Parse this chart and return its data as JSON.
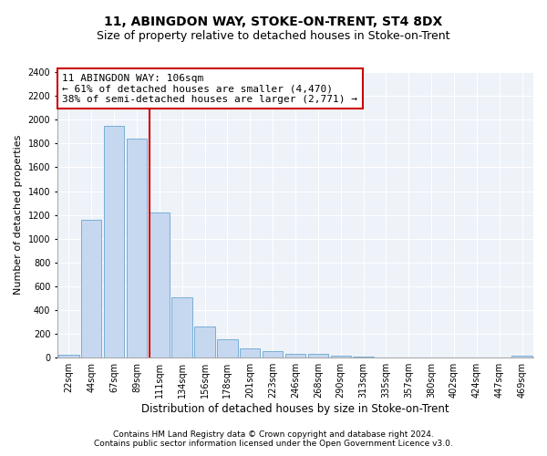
{
  "title1": "11, ABINGDON WAY, STOKE-ON-TRENT, ST4 8DX",
  "title2": "Size of property relative to detached houses in Stoke-on-Trent",
  "xlabel": "Distribution of detached houses by size in Stoke-on-Trent",
  "ylabel": "Number of detached properties",
  "footnote1": "Contains HM Land Registry data © Crown copyright and database right 2024.",
  "footnote2": "Contains public sector information licensed under the Open Government Licence v3.0.",
  "bar_labels": [
    "22sqm",
    "44sqm",
    "67sqm",
    "89sqm",
    "111sqm",
    "134sqm",
    "156sqm",
    "178sqm",
    "201sqm",
    "223sqm",
    "246sqm",
    "268sqm",
    "290sqm",
    "313sqm",
    "335sqm",
    "357sqm",
    "380sqm",
    "402sqm",
    "424sqm",
    "447sqm",
    "469sqm"
  ],
  "bar_values": [
    25,
    1155,
    1950,
    1840,
    1220,
    510,
    260,
    155,
    80,
    55,
    35,
    35,
    20,
    8,
    5,
    5,
    5,
    3,
    3,
    3,
    15
  ],
  "bar_color": "#c5d8f0",
  "bar_edge_color": "#7aaed6",
  "property_line_color": "#cc0000",
  "annotation_line1": "11 ABINGDON WAY: 106sqm",
  "annotation_line2": "← 61% of detached houses are smaller (4,470)",
  "annotation_line3": "38% of semi-detached houses are larger (2,771) →",
  "annotation_box_color": "#cc0000",
  "ylim": [
    0,
    2400
  ],
  "yticks": [
    0,
    200,
    400,
    600,
    800,
    1000,
    1200,
    1400,
    1600,
    1800,
    2000,
    2200,
    2400
  ],
  "bg_color": "#eef2f9",
  "grid_color": "#ffffff",
  "title1_fontsize": 10,
  "title2_fontsize": 9,
  "xlabel_fontsize": 8.5,
  "ylabel_fontsize": 8,
  "tick_fontsize": 7,
  "annot_fontsize": 8,
  "footnote_fontsize": 6.5
}
